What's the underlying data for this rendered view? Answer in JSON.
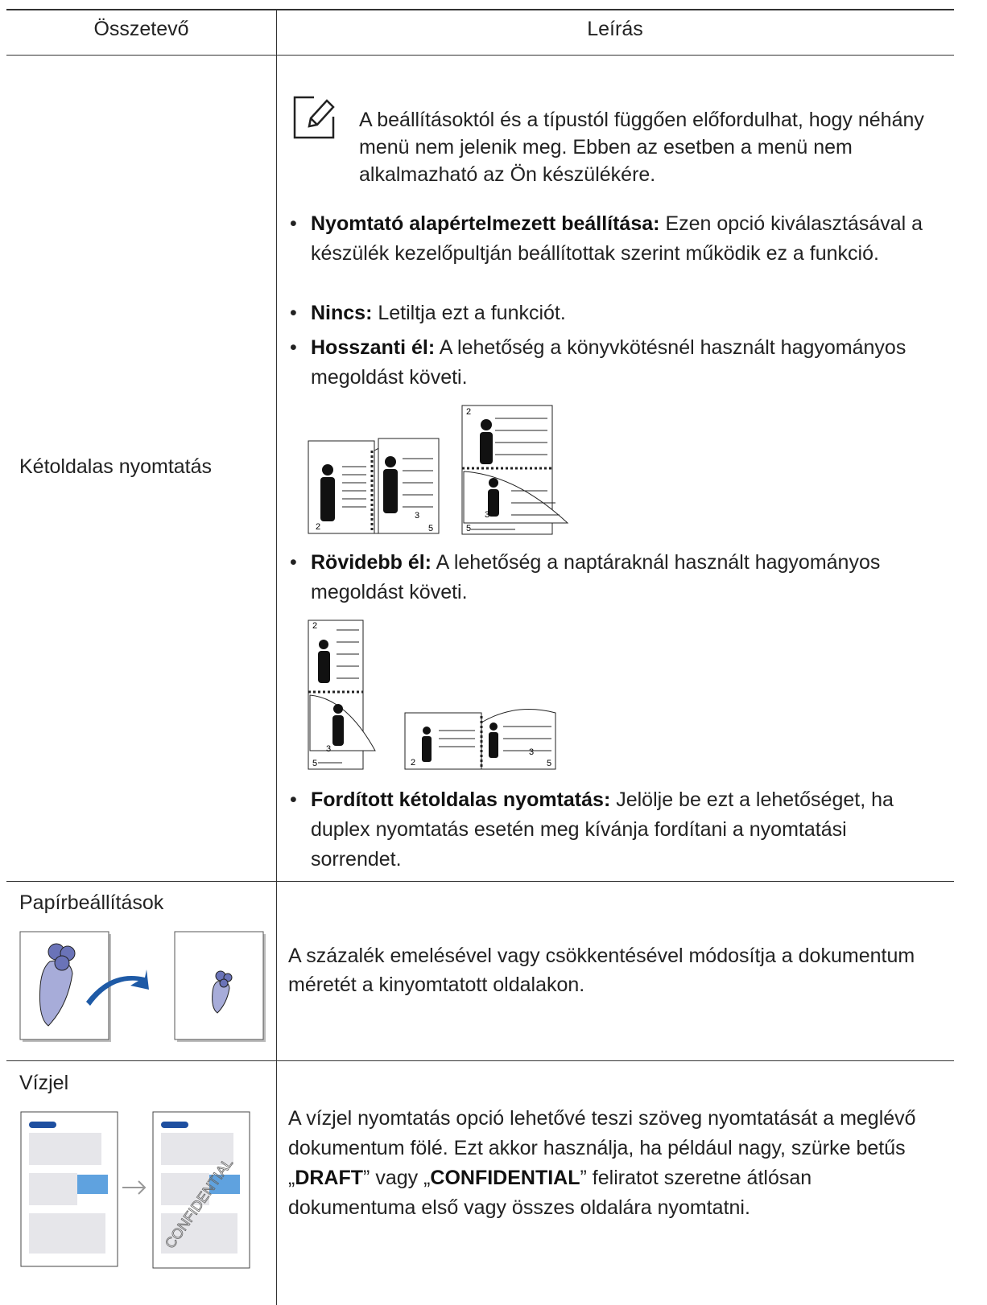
{
  "table": {
    "headers": [
      "Összetevő",
      "Leírás"
    ],
    "rows": [
      {
        "name": "Kétoldalas nyomtatás",
        "note": "A beállításoktól és a típustól függően előfordulhat, hogy néhány menü nem jelenik meg. Ebben az esetben a menü nem alkalmazható az Ön készülékére.",
        "items": [
          {
            "term": "Nyomtató alapértelmezett beállítása:",
            "text": "Ezen opció kiválasztásával a készülék kezelőpultján beállítottak szerint működik ez a funkció."
          },
          {
            "term": "Nincs:",
            "text": "Letiltja ezt a funkciót."
          },
          {
            "term": "Hosszanti él:",
            "text": "A lehetőség a könyvkötésnél használt hagyományos megoldást követi."
          },
          {
            "term": "Rövidebb él:",
            "text": "A lehetőség a naptáraknál használt hagyományos megoldást követi."
          },
          {
            "term": "Fordított kétoldalas nyomtatás:",
            "text": "Jelölje be ezt a lehetőséget, ha duplex nyomtatás esetén meg kívánja fordítani a nyomtatási sorrendet."
          }
        ],
        "page_numbers": [
          "2",
          "3",
          "5"
        ]
      },
      {
        "name": "Papírbeállítások",
        "description": "A százalék emelésével vagy csökkentésével módosítja a dokumentum méretét a kinyomtatott oldalakon."
      },
      {
        "name": "Vízjel",
        "description_parts": [
          "A vízjel nyomtatás opció lehetővé teszi szöveg nyomtatását a meglévő dokumentum fölé. Ezt akkor használja, ha például nagy, szürke betűs „",
          "DRAFT",
          "” vagy „",
          "CONFIDENTIAL",
          "” feliratot szeretne átlósan dokumentuma első vagy összes oldalára nyomtatni."
        ],
        "watermark_text": "CONFIDENTIAL"
      }
    ]
  }
}
